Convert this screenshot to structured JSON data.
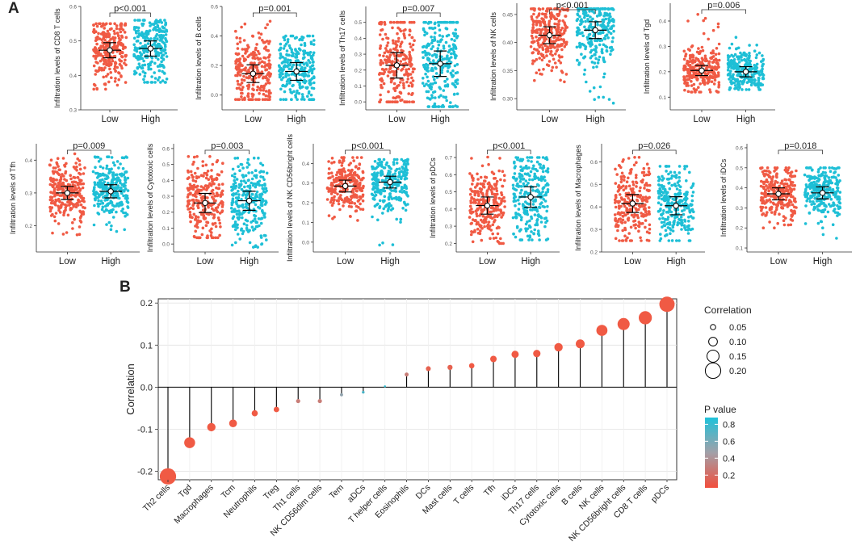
{
  "panel_a_label": "A",
  "panel_b_label": "B",
  "colors": {
    "low": "#F05A44",
    "high": "#1EBFD6",
    "lollipop_low_p": "#F05A44",
    "lollipop_high_p": "#2BB9CF"
  },
  "chart_data": [
    {
      "type": "scatter",
      "panel": "A",
      "ylabel": "Infiltration levels of CD8 T cells",
      "pvalue": "p<0.001",
      "categories": [
        "Low",
        "High"
      ],
      "ylim": [
        0.3,
        0.6
      ],
      "yticks": [
        0.3,
        0.4,
        0.5,
        0.6
      ],
      "groups": [
        {
          "name": "Low",
          "mean": 0.473,
          "sd": 0.022,
          "spread_low": 0.36,
          "spread_high": 0.55
        },
        {
          "name": "High",
          "mean": 0.478,
          "sd": 0.022,
          "spread_low": 0.38,
          "spread_high": 0.56
        }
      ]
    },
    {
      "type": "scatter",
      "panel": "A",
      "ylabel": "Infiltration levels of B cells",
      "pvalue": "p=0.001",
      "categories": [
        "Low",
        "High"
      ],
      "ylim": [
        -0.1,
        0.6
      ],
      "yticks": [
        0.0,
        0.2,
        0.4,
        0.6
      ],
      "groups": [
        {
          "name": "Low",
          "mean": 0.145,
          "sd": 0.06,
          "spread_low": -0.03,
          "spread_high": 0.5
        },
        {
          "name": "High",
          "mean": 0.16,
          "sd": 0.06,
          "spread_low": -0.03,
          "spread_high": 0.4
        }
      ]
    },
    {
      "type": "scatter",
      "panel": "A",
      "ylabel": "Infiltration levels of Th17 cells",
      "pvalue": "p=0.007",
      "categories": [
        "Low",
        "High"
      ],
      "ylim": [
        -0.05,
        0.6
      ],
      "yticks": [
        0.0,
        0.1,
        0.2,
        0.3,
        0.4,
        0.5
      ],
      "groups": [
        {
          "name": "Low",
          "mean": 0.23,
          "sd": 0.08,
          "spread_low": 0.0,
          "spread_high": 0.5
        },
        {
          "name": "High",
          "mean": 0.24,
          "sd": 0.08,
          "spread_low": -0.03,
          "spread_high": 0.5
        }
      ]
    },
    {
      "type": "scatter",
      "panel": "A",
      "ylabel": "Infiltration levels of NK cells",
      "pvalue": "p<0.001",
      "categories": [
        "Low",
        "High"
      ],
      "ylim": [
        0.28,
        0.47
      ],
      "yticks": [
        0.3,
        0.35,
        0.4,
        0.45
      ],
      "groups": [
        {
          "name": "Low",
          "mean": 0.413,
          "sd": 0.015,
          "spread_low": 0.33,
          "spread_high": 0.46
        },
        {
          "name": "High",
          "mean": 0.422,
          "sd": 0.015,
          "spread_low": 0.29,
          "spread_high": 0.46
        }
      ]
    },
    {
      "type": "scatter",
      "panel": "A",
      "ylabel": "Infiltration levels of Tgd",
      "pvalue": "p=0.006",
      "categories": [
        "Low",
        "High"
      ],
      "ylim": [
        0.05,
        0.47
      ],
      "yticks": [
        0.1,
        0.2,
        0.3,
        0.4
      ],
      "groups": [
        {
          "name": "Low",
          "mean": 0.205,
          "sd": 0.02,
          "spread_low": 0.12,
          "spread_high": 0.43
        },
        {
          "name": "High",
          "mean": 0.2,
          "sd": 0.02,
          "spread_low": 0.13,
          "spread_high": 0.35
        }
      ]
    },
    {
      "type": "scatter",
      "panel": "A",
      "ylabel": "Infiltration levels of Tfh",
      "pvalue": "p=0.009",
      "categories": [
        "Low",
        "High"
      ],
      "ylim": [
        0.12,
        0.45
      ],
      "yticks": [
        0.2,
        0.3,
        0.4
      ],
      "groups": [
        {
          "name": "Low",
          "mean": 0.3,
          "sd": 0.02,
          "spread_low": 0.16,
          "spread_high": 0.42
        },
        {
          "name": "High",
          "mean": 0.305,
          "sd": 0.02,
          "spread_low": 0.17,
          "spread_high": 0.41
        }
      ]
    },
    {
      "type": "scatter",
      "panel": "A",
      "ylabel": "Infiltration levels of Cytotoxic cells",
      "pvalue": "p=0.003",
      "categories": [
        "Low",
        "High"
      ],
      "ylim": [
        -0.05,
        0.63
      ],
      "yticks": [
        0.0,
        0.1,
        0.2,
        0.3,
        0.4,
        0.5,
        0.6
      ],
      "groups": [
        {
          "name": "Low",
          "mean": 0.258,
          "sd": 0.06,
          "spread_low": 0.04,
          "spread_high": 0.55
        },
        {
          "name": "High",
          "mean": 0.272,
          "sd": 0.06,
          "spread_low": -0.02,
          "spread_high": 0.54
        }
      ]
    },
    {
      "type": "scatter",
      "panel": "A",
      "ylabel": "Infiltration levels of NK CD56bright cells",
      "pvalue": "p<0.001",
      "categories": [
        "Low",
        "High"
      ],
      "ylim": [
        -0.05,
        0.5
      ],
      "yticks": [
        0.0,
        0.1,
        0.2,
        0.3,
        0.4
      ],
      "groups": [
        {
          "name": "Low",
          "mean": 0.285,
          "sd": 0.03,
          "spread_low": 0.11,
          "spread_high": 0.43
        },
        {
          "name": "High",
          "mean": 0.305,
          "sd": 0.03,
          "spread_low": -0.02,
          "spread_high": 0.42
        }
      ]
    },
    {
      "type": "scatter",
      "panel": "A",
      "ylabel": "Infiltration levels of pDCs",
      "pvalue": "p<0.001",
      "categories": [
        "Low",
        "High"
      ],
      "ylim": [
        0.15,
        0.78
      ],
      "yticks": [
        0.2,
        0.3,
        0.4,
        0.5,
        0.6,
        0.7
      ],
      "groups": [
        {
          "name": "Low",
          "mean": 0.42,
          "sd": 0.05,
          "spread_low": 0.2,
          "spread_high": 0.75
        },
        {
          "name": "High",
          "mean": 0.47,
          "sd": 0.06,
          "spread_low": 0.22,
          "spread_high": 0.7
        }
      ]
    },
    {
      "type": "scatter",
      "panel": "A",
      "ylabel": "Infiltration levels of Macrophages",
      "pvalue": "p=0.026",
      "categories": [
        "Low",
        "High"
      ],
      "ylim": [
        0.2,
        0.68
      ],
      "yticks": [
        0.2,
        0.3,
        0.4,
        0.5,
        0.6
      ],
      "groups": [
        {
          "name": "Low",
          "mean": 0.415,
          "sd": 0.04,
          "spread_low": 0.25,
          "spread_high": 0.62
        },
        {
          "name": "High",
          "mean": 0.405,
          "sd": 0.04,
          "spread_low": 0.25,
          "spread_high": 0.58
        }
      ]
    },
    {
      "type": "scatter",
      "panel": "A",
      "ylabel": "Infiltration levels of iDCs",
      "pvalue": "p=0.018",
      "categories": [
        "Low",
        "High"
      ],
      "ylim": [
        0.08,
        0.62
      ],
      "yticks": [
        0.1,
        0.2,
        0.3,
        0.4,
        0.5,
        0.6
      ],
      "groups": [
        {
          "name": "Low",
          "mean": 0.37,
          "sd": 0.03,
          "spread_low": 0.2,
          "spread_high": 0.5
        },
        {
          "name": "High",
          "mean": 0.375,
          "sd": 0.03,
          "spread_low": 0.12,
          "spread_high": 0.5
        }
      ]
    },
    {
      "type": "scatter",
      "panel": "B",
      "subtype": "lollipop",
      "ylabel": "Correlation",
      "ylim": [
        -0.22,
        0.21
      ],
      "yticks": [
        -0.2,
        -0.1,
        0.0,
        0.1,
        0.2
      ],
      "categories": [
        "Th2 cells",
        "Tgd",
        "Macrophages",
        "Tcm",
        "Neutrophils",
        "Treg",
        "Th1 cells",
        "NK CD56dim cells",
        "Tem",
        "aDCs",
        "T helper cells",
        "Eosinophils",
        "DCs",
        "Mast cells",
        "T cells",
        "Tfh",
        "iDCs",
        "Th17 cells",
        "Cytotoxic cells",
        "B cells",
        "NK cells",
        "NK CD56bright cells",
        "CD8 T cells",
        "pDCs"
      ],
      "values": [
        -0.212,
        -0.132,
        -0.095,
        -0.086,
        -0.062,
        -0.053,
        -0.033,
        -0.033,
        -0.018,
        -0.012,
        0.002,
        0.03,
        0.044,
        0.047,
        0.051,
        0.067,
        0.078,
        0.08,
        0.095,
        0.103,
        0.135,
        0.15,
        0.165,
        0.197
      ],
      "pvalues": [
        0.001,
        0.001,
        0.001,
        0.001,
        0.01,
        0.01,
        0.25,
        0.25,
        0.5,
        0.75,
        0.9,
        0.25,
        0.1,
        0.1,
        0.05,
        0.01,
        0.01,
        0.01,
        0.001,
        0.001,
        0.001,
        0.001,
        0.001,
        0.001
      ],
      "legend_size": {
        "title": "Correlation",
        "levels": [
          0.05,
          0.1,
          0.15,
          0.2
        ],
        "labels": [
          "0.05",
          "0.10",
          "0.15",
          "0.20"
        ]
      },
      "legend_color": {
        "title": "P value",
        "ticks": [
          0.8,
          0.6,
          0.4,
          0.2
        ],
        "labels": [
          "0.8",
          "0.6",
          "0.4",
          "0.2"
        ]
      }
    }
  ]
}
